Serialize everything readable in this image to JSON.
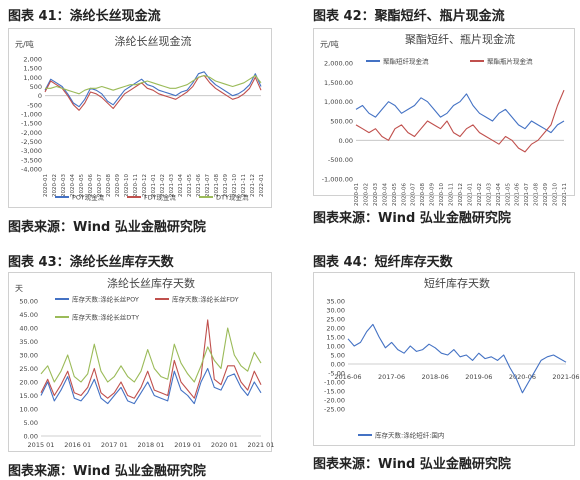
{
  "panels": [
    {
      "title": "图表 41：涤纶长丝现金流",
      "source": "图表来源：Wind 弘业金融研究院"
    },
    {
      "title": "图表 42：聚酯短纤、瓶片现金流",
      "source": "图表来源：Wind 弘业金融研究院"
    },
    {
      "title": "图表 43：涤纶长丝库存天数",
      "source": "图表来源：Wind 弘业金融研究院"
    },
    {
      "title": "图表 44：短纤库存天数",
      "source": "图表来源：Wind 弘业金融研究院"
    }
  ],
  "chart_data": [
    {
      "type": "line",
      "title": "涤纶长丝现金流",
      "ylabel": "元/吨",
      "ylim": [
        -4000,
        2000
      ],
      "yticks": [
        "2,000",
        "1,500",
        "1,000",
        "500",
        "0",
        "-500",
        "-1,000",
        "-1,500",
        "-2,000",
        "-2,500",
        "-3,000",
        "-3,500",
        "-4,000"
      ],
      "xticks": [
        "2020-01",
        "2020-02",
        "2020-03",
        "2020-04",
        "2020-05",
        "2020-06",
        "2020-07",
        "2020-08",
        "2020-09",
        "2020-10",
        "2020-11",
        "2020-12",
        "2021-01",
        "2021-02",
        "2021-03",
        "2021-04",
        "2021-05",
        "2021-06",
        "2021-07",
        "2021-08",
        "2021-09",
        "2021-10",
        "2021-11",
        "2021-12",
        "2022-01"
      ],
      "legend_position": "bottom",
      "grid": false,
      "series": [
        {
          "name": "POY现金流",
          "color": "#4472c4",
          "values": [
            300,
            900,
            700,
            500,
            100,
            -400,
            -600,
            -200,
            400,
            300,
            100,
            -300,
            -500,
            -100,
            300,
            500,
            700,
            900,
            600,
            500,
            300,
            200,
            100,
            0,
            200,
            300,
            700,
            1200,
            1300,
            900,
            600,
            400,
            200,
            0,
            100,
            300,
            600,
            1200,
            500
          ]
        },
        {
          "name": "FDY现金流",
          "color": "#c0504d",
          "values": [
            200,
            800,
            600,
            400,
            0,
            -500,
            -800,
            -400,
            200,
            100,
            -100,
            -400,
            -700,
            -300,
            100,
            300,
            500,
            700,
            400,
            300,
            100,
            0,
            -100,
            -200,
            0,
            200,
            500,
            1000,
            1100,
            700,
            400,
            200,
            0,
            -200,
            -100,
            100,
            400,
            1000,
            300
          ]
        },
        {
          "name": "DTY现金流",
          "color": "#9bbb59",
          "values": [
            400,
            400,
            500,
            400,
            300,
            200,
            100,
            300,
            400,
            400,
            500,
            400,
            300,
            400,
            500,
            600,
            600,
            700,
            800,
            700,
            600,
            500,
            400,
            400,
            500,
            600,
            800,
            1000,
            1100,
            1000,
            800,
            700,
            600,
            500,
            600,
            700,
            900,
            1100,
            700
          ]
        }
      ]
    },
    {
      "type": "line",
      "title": "聚酯短纤、瓶片现金流",
      "ylabel": "元/吨",
      "ylim": [
        -1000,
        2000
      ],
      "yticks": [
        "2,000.00",
        "1,500.00",
        "1,000.00",
        "500.00",
        "0.00",
        "-500.00",
        "-1,000.00"
      ],
      "xticks": [
        "2020-01",
        "2020-02",
        "2020-03",
        "2020-04",
        "2020-05",
        "2020-06",
        "2020-07",
        "2020-08",
        "2020-09",
        "2020-10",
        "2020-11",
        "2020-12",
        "2021-01",
        "2021-02",
        "2021-03",
        "2021-04",
        "2021-05",
        "2021-06",
        "2021-07",
        "2021-08",
        "2021-09",
        "2021-10",
        "2021-11"
      ],
      "legend_position": "top",
      "grid": false,
      "series": [
        {
          "name": "聚酯短纤现金流",
          "color": "#4472c4",
          "values": [
            800,
            900,
            700,
            600,
            800,
            1000,
            900,
            700,
            800,
            900,
            1100,
            1000,
            800,
            600,
            700,
            900,
            1000,
            1200,
            900,
            700,
            600,
            500,
            700,
            800,
            600,
            400,
            300,
            500,
            400,
            300,
            200,
            400,
            500
          ]
        },
        {
          "name": "聚酯瓶片现金流",
          "color": "#c0504d",
          "values": [
            400,
            300,
            200,
            300,
            100,
            0,
            300,
            400,
            200,
            100,
            300,
            500,
            400,
            300,
            500,
            200,
            100,
            300,
            400,
            200,
            100,
            0,
            -100,
            100,
            0,
            -200,
            -300,
            -100,
            0,
            200,
            400,
            900,
            1300
          ]
        }
      ]
    },
    {
      "type": "line",
      "title": "涤纶长丝库存天数",
      "ylabel": "天",
      "ylim": [
        0,
        50
      ],
      "yticks": [
        "50.00",
        "45.00",
        "40.00",
        "35.00",
        "30.00",
        "25.00",
        "20.00",
        "15.00",
        "10.00",
        "5.00",
        "0.00"
      ],
      "xticks": [
        "2015 01",
        "2016 01",
        "2017 01",
        "2018 01",
        "2019 01",
        "2020 01",
        "2021 01"
      ],
      "legend_position": "top-left",
      "grid": false,
      "series": [
        {
          "name": "库存天数:涤纶长丝POY",
          "color": "#4472c4",
          "values": [
            15,
            20,
            13,
            17,
            22,
            14,
            13,
            16,
            21,
            14,
            12,
            15,
            18,
            13,
            12,
            16,
            20,
            15,
            14,
            13,
            24,
            17,
            15,
            12,
            20,
            25,
            18,
            17,
            22,
            23,
            18,
            15,
            20,
            16
          ]
        },
        {
          "name": "库存天数:涤纶长丝FDY",
          "color": "#c0504d",
          "values": [
            16,
            21,
            15,
            19,
            24,
            16,
            15,
            18,
            25,
            16,
            14,
            16,
            20,
            15,
            14,
            18,
            24,
            17,
            16,
            15,
            28,
            20,
            17,
            14,
            22,
            43,
            21,
            19,
            26,
            26,
            20,
            17,
            24,
            19
          ]
        },
        {
          "name": "库存天数:涤纶长丝DTY",
          "color": "#9bbb59",
          "values": [
            23,
            26,
            20,
            24,
            30,
            22,
            20,
            23,
            34,
            24,
            20,
            22,
            26,
            22,
            20,
            24,
            32,
            25,
            22,
            21,
            34,
            27,
            23,
            20,
            26,
            33,
            28,
            25,
            40,
            30,
            26,
            24,
            31,
            27
          ]
        }
      ]
    },
    {
      "type": "line",
      "title": "短纤库存天数",
      "ylabel": "",
      "ylim": [
        -25,
        35
      ],
      "yticks": [
        "35.00",
        "30.00",
        "25.00",
        "20.00",
        "15.00",
        "10.00",
        "5.00",
        "0.00",
        "-5.00",
        "-10.00",
        "-15.00",
        "-20.00",
        "-25.00"
      ],
      "xticks": [
        "2016-06",
        "2017-06",
        "2018-06",
        "2019-06",
        "2020-06",
        "2021-06"
      ],
      "legend_position": "bottom",
      "grid": false,
      "series": [
        {
          "name": "库存天数:涤纶短纤:国内",
          "color": "#4472c4",
          "values": [
            14,
            10,
            12,
            18,
            22,
            15,
            9,
            12,
            8,
            6,
            10,
            7,
            8,
            11,
            9,
            6,
            5,
            8,
            4,
            5,
            2,
            6,
            3,
            4,
            2,
            5,
            -2,
            -8,
            -16,
            -10,
            -4,
            2,
            4,
            5,
            3,
            1
          ]
        }
      ]
    }
  ]
}
